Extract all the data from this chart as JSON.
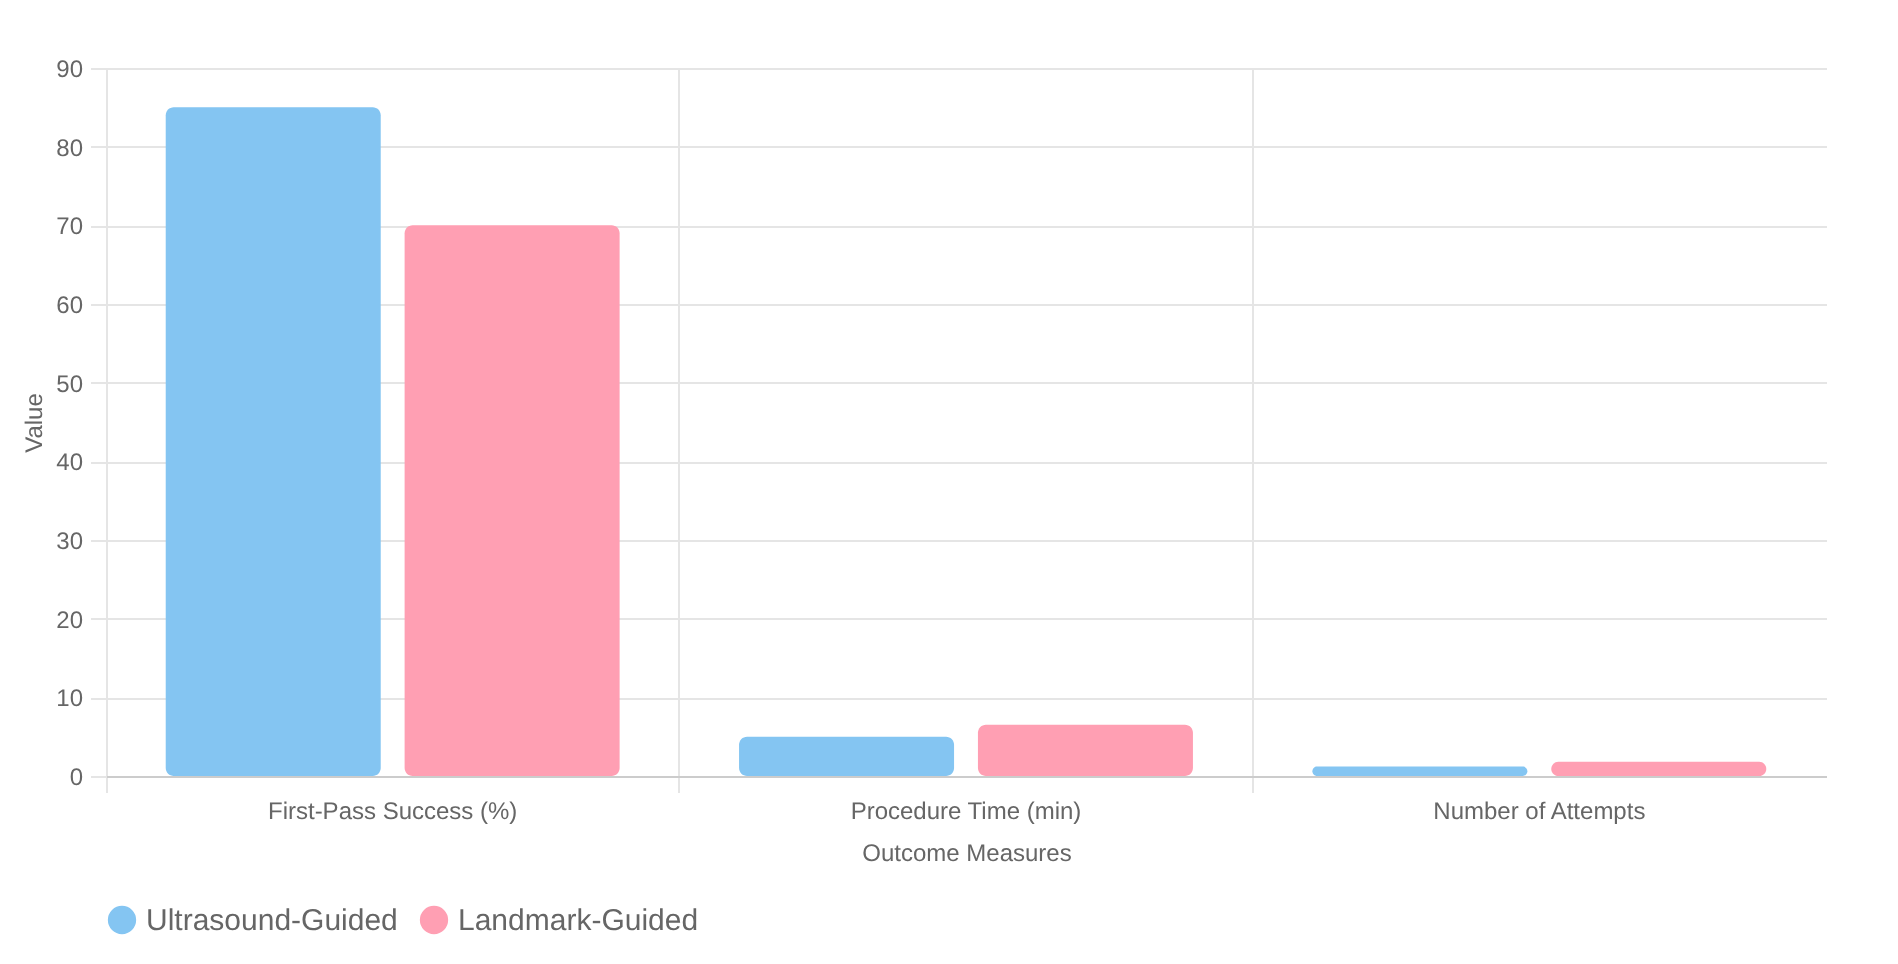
{
  "chart_data": {
    "type": "bar",
    "xlabel": "Outcome Measures",
    "ylabel": "Value",
    "categories": [
      "First-Pass Success (%)",
      "Procedure Time (min)",
      "Number of Attempts"
    ],
    "series": [
      {
        "name": "Ultrasound-Guided",
        "color": "#84c5f2",
        "values": [
          85,
          5,
          1.2
        ]
      },
      {
        "name": "Landmark-Guided",
        "color": "#ff9fb3",
        "values": [
          70,
          6.5,
          1.8
        ]
      }
    ],
    "ylim": [
      0,
      90
    ],
    "yticks": [
      0,
      10,
      20,
      30,
      40,
      50,
      60,
      70,
      80,
      90
    ],
    "grid": true,
    "legend": "bottom"
  }
}
